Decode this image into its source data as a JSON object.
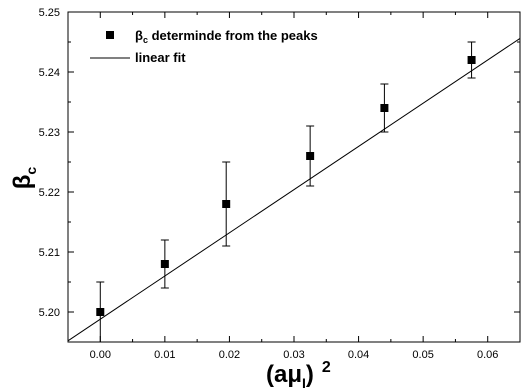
{
  "chart_data": {
    "type": "scatter",
    "xlabel_main": "(aμ",
    "xlabel_sub": "I",
    "xlabel_sup": "2",
    "ylabel_main": "β",
    "ylabel_sub": "c",
    "xlim": [
      -0.005,
      0.065
    ],
    "ylim": [
      5.195,
      5.25
    ],
    "x_ticks": [
      0.0,
      0.01,
      0.02,
      0.03,
      0.04,
      0.05,
      0.06
    ],
    "x_tick_labels": [
      "0.00",
      "0.01",
      "0.02",
      "0.03",
      "0.04",
      "0.05",
      "0.06"
    ],
    "y_ticks": [
      5.2,
      5.21,
      5.22,
      5.23,
      5.24,
      5.25
    ],
    "y_tick_labels": [
      "5.20",
      "5.21",
      "5.22",
      "5.23",
      "5.24",
      "5.25"
    ],
    "grid": false,
    "legend_position": "top-left",
    "series": [
      {
        "name_main": "β",
        "name_sub": "c",
        "name_rest": " determinde from the peaks",
        "kind": "points-with-errorbars",
        "marker": "filled-square",
        "x": [
          0.0,
          0.01,
          0.0195,
          0.0325,
          0.044,
          0.0575
        ],
        "y": [
          5.2,
          5.208,
          5.218,
          5.226,
          5.234,
          5.242
        ],
        "yerr": [
          0.005,
          0.004,
          0.007,
          0.005,
          0.004,
          0.003
        ]
      },
      {
        "name": "linear fit",
        "kind": "line",
        "intercept": 5.1988,
        "slope": 0.72
      }
    ]
  }
}
